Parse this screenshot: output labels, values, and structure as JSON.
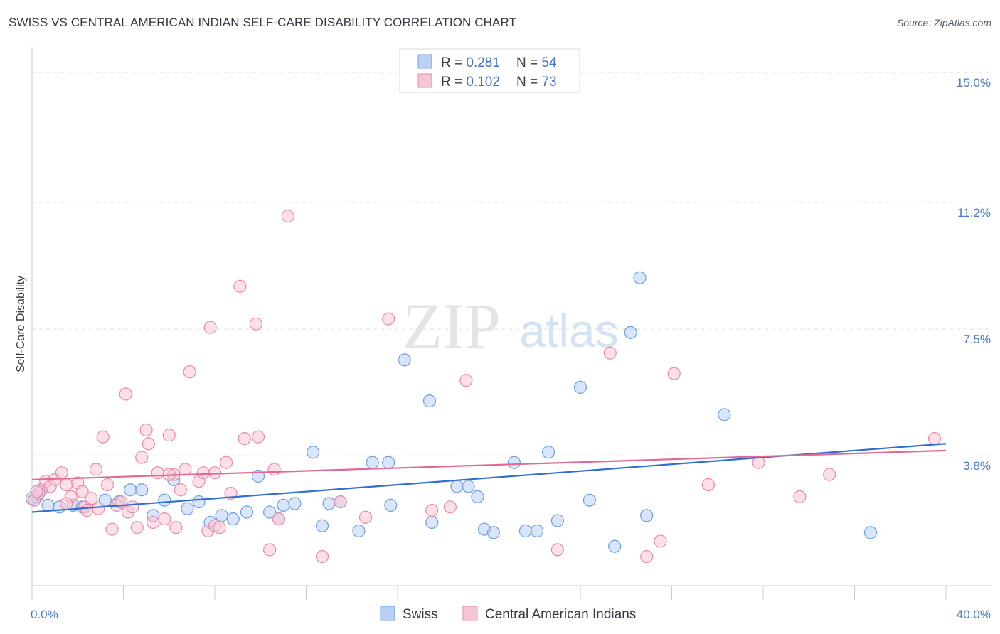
{
  "title": "SWISS VS CENTRAL AMERICAN INDIAN SELF-CARE DISABILITY CORRELATION CHART",
  "source": "Source: ZipAtlas.com",
  "watermark": {
    "zip": "ZIP",
    "atlas": "atlas"
  },
  "chart_data": {
    "type": "scatter",
    "title": "SWISS VS CENTRAL AMERICAN INDIAN SELF-CARE DISABILITY CORRELATION CHART",
    "xlabel": "",
    "ylabel": "Self-Care Disability",
    "xlim": [
      0,
      40
    ],
    "ylim": [
      0,
      15.5
    ],
    "x_tick_labels": [
      {
        "value": 0,
        "label": "0.0%"
      },
      {
        "value": 40,
        "label": "40.0%"
      }
    ],
    "y_tick_labels": [
      {
        "value": 3.8,
        "label": "3.8%"
      },
      {
        "value": 7.5,
        "label": "7.5%"
      },
      {
        "value": 11.2,
        "label": "11.2%"
      },
      {
        "value": 15.0,
        "label": "15.0%"
      }
    ],
    "grid": true,
    "legend_position": "top-center",
    "series": [
      {
        "name": "Swiss",
        "color": "#6e9ee0",
        "line_color": "#2f6fd0",
        "fill": "#b9d0f2",
        "R": "0.281",
        "N": "54",
        "trend": [
          [
            0,
            2.15
          ],
          [
            40,
            4.15
          ]
        ],
        "points": [
          [
            0.2,
            2.6
          ],
          [
            0.4,
            2.8
          ],
          [
            0.7,
            2.35
          ],
          [
            1.2,
            2.3
          ],
          [
            1.8,
            2.35
          ],
          [
            2.2,
            2.3
          ],
          [
            3.2,
            2.5
          ],
          [
            3.8,
            2.45
          ],
          [
            4.3,
            2.8
          ],
          [
            4.8,
            2.8
          ],
          [
            5.3,
            2.05
          ],
          [
            5.8,
            2.5
          ],
          [
            6.2,
            3.1
          ],
          [
            6.8,
            2.25
          ],
          [
            7.3,
            2.45
          ],
          [
            7.8,
            1.85
          ],
          [
            8.3,
            2.05
          ],
          [
            8.8,
            1.95
          ],
          [
            9.4,
            2.15
          ],
          [
            9.9,
            3.2
          ],
          [
            10.4,
            2.15
          ],
          [
            10.8,
            1.95
          ],
          [
            11.0,
            2.35
          ],
          [
            11.5,
            2.4
          ],
          [
            12.3,
            3.9
          ],
          [
            12.7,
            1.75
          ],
          [
            13.0,
            2.4
          ],
          [
            13.5,
            2.45
          ],
          [
            14.3,
            1.6
          ],
          [
            14.9,
            3.6
          ],
          [
            15.6,
            3.6
          ],
          [
            15.7,
            2.35
          ],
          [
            16.3,
            6.6
          ],
          [
            17.4,
            5.4
          ],
          [
            17.5,
            1.85
          ],
          [
            18.6,
            2.9
          ],
          [
            19.1,
            2.9
          ],
          [
            19.5,
            2.6
          ],
          [
            19.8,
            1.65
          ],
          [
            20.2,
            1.55
          ],
          [
            21.1,
            3.6
          ],
          [
            21.6,
            1.6
          ],
          [
            22.1,
            1.6
          ],
          [
            22.6,
            3.9
          ],
          [
            23.0,
            1.9
          ],
          [
            24.0,
            5.8
          ],
          [
            24.4,
            2.5
          ],
          [
            25.5,
            1.15
          ],
          [
            26.2,
            7.4
          ],
          [
            26.6,
            9.0
          ],
          [
            26.9,
            2.05
          ],
          [
            30.3,
            5.0
          ],
          [
            36.7,
            1.55
          ],
          [
            0.0,
            2.55
          ]
        ]
      },
      {
        "name": "Central American Indians",
        "color": "#e98aa9",
        "line_color": "#e06a95",
        "fill": "#f7c6d5",
        "R": "0.102",
        "N": "73",
        "trend": [
          [
            0,
            3.1
          ],
          [
            40,
            3.95
          ]
        ],
        "points": [
          [
            0.1,
            2.5
          ],
          [
            0.3,
            2.7
          ],
          [
            0.6,
            3.05
          ],
          [
            0.8,
            2.9
          ],
          [
            1.0,
            3.1
          ],
          [
            1.3,
            3.3
          ],
          [
            1.5,
            2.95
          ],
          [
            1.7,
            2.6
          ],
          [
            2.0,
            3.0
          ],
          [
            2.2,
            2.75
          ],
          [
            2.3,
            2.3
          ],
          [
            2.6,
            2.55
          ],
          [
            2.8,
            3.4
          ],
          [
            2.9,
            2.25
          ],
          [
            3.1,
            4.35
          ],
          [
            3.3,
            2.95
          ],
          [
            3.5,
            1.65
          ],
          [
            3.7,
            2.35
          ],
          [
            3.9,
            2.45
          ],
          [
            4.1,
            5.6
          ],
          [
            4.2,
            2.15
          ],
          [
            4.4,
            2.3
          ],
          [
            4.6,
            1.7
          ],
          [
            4.8,
            3.75
          ],
          [
            5.0,
            4.55
          ],
          [
            5.1,
            4.15
          ],
          [
            5.3,
            1.85
          ],
          [
            5.5,
            3.3
          ],
          [
            5.8,
            1.95
          ],
          [
            6.0,
            4.4
          ],
          [
            6.2,
            3.25
          ],
          [
            6.3,
            1.7
          ],
          [
            6.5,
            2.8
          ],
          [
            6.7,
            3.4
          ],
          [
            6.9,
            6.25
          ],
          [
            7.3,
            3.05
          ],
          [
            7.5,
            3.3
          ],
          [
            7.7,
            1.6
          ],
          [
            7.8,
            7.55
          ],
          [
            8.0,
            1.75
          ],
          [
            8.2,
            1.7
          ],
          [
            8.5,
            3.6
          ],
          [
            8.7,
            2.7
          ],
          [
            9.1,
            8.75
          ],
          [
            9.3,
            4.3
          ],
          [
            9.8,
            7.65
          ],
          [
            9.9,
            4.35
          ],
          [
            10.4,
            1.05
          ],
          [
            10.6,
            3.4
          ],
          [
            10.8,
            1.95
          ],
          [
            11.2,
            10.8
          ],
          [
            12.7,
            0.85
          ],
          [
            13.5,
            2.45
          ],
          [
            14.6,
            2.0
          ],
          [
            15.6,
            7.8
          ],
          [
            17.5,
            2.2
          ],
          [
            18.3,
            2.3
          ],
          [
            19.0,
            6.0
          ],
          [
            23.0,
            1.05
          ],
          [
            25.3,
            6.8
          ],
          [
            26.9,
            0.85
          ],
          [
            27.5,
            1.3
          ],
          [
            28.1,
            6.2
          ],
          [
            29.6,
            2.95
          ],
          [
            31.8,
            3.6
          ],
          [
            33.6,
            2.6
          ],
          [
            34.9,
            3.25
          ],
          [
            39.5,
            4.3
          ],
          [
            0.2,
            2.75
          ],
          [
            1.5,
            2.4
          ],
          [
            2.4,
            2.2
          ],
          [
            6.0,
            3.25
          ],
          [
            8.0,
            3.3
          ]
        ]
      }
    ]
  }
}
